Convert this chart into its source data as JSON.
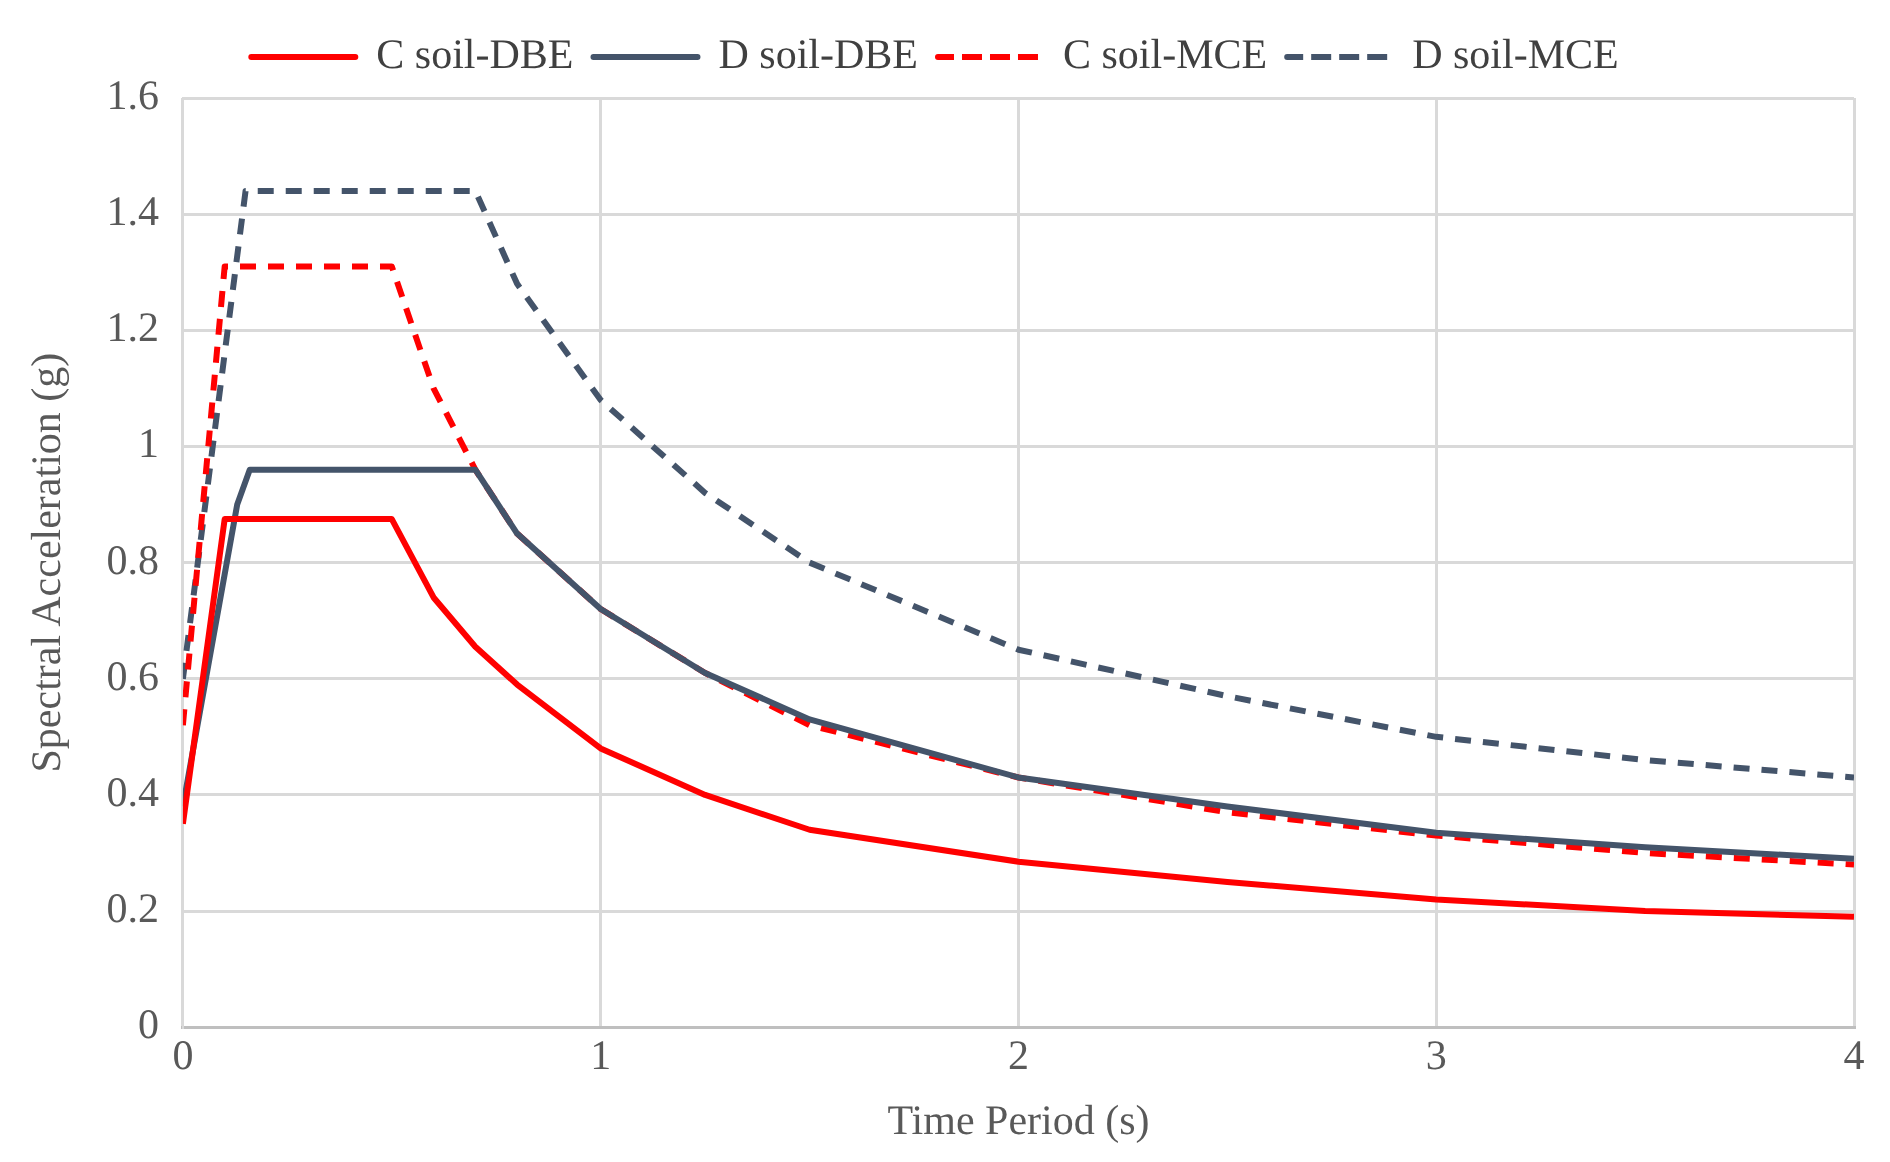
{
  "chart_data": {
    "type": "line",
    "xlabel": "Time Period (s)",
    "ylabel": "Spectral Acceleration (g)",
    "xlim": [
      0,
      4
    ],
    "xticks": [
      0,
      1,
      2,
      3,
      4
    ],
    "ylim": [
      0,
      1.6
    ],
    "yticks": [
      0,
      0.2,
      0.4,
      0.6,
      0.8,
      1,
      1.2,
      1.4,
      1.6
    ],
    "grid": true,
    "legend": "top",
    "marker": "none",
    "series": [
      {
        "name": "C soil-DBE",
        "color": "#ff0000",
        "line_style": "solid",
        "x": [
          0,
          0.1,
          0.5,
          0.6,
          0.7,
          0.8,
          1,
          1.25,
          1.5,
          2,
          2.5,
          3,
          3.5,
          4
        ],
        "values": [
          0.35,
          0.875,
          0.875,
          0.74,
          0.655,
          0.59,
          0.48,
          0.4,
          0.34,
          0.285,
          0.25,
          0.22,
          0.2,
          0.19
        ]
      },
      {
        "name": "D soil-DBE",
        "color": "#44546a",
        "line_style": "solid",
        "x": [
          0,
          0.13,
          0.16,
          0.7,
          0.8,
          1,
          1.25,
          1.5,
          2,
          2.5,
          3,
          3.5,
          4
        ],
        "values": [
          0.38,
          0.9,
          0.96,
          0.96,
          0.85,
          0.72,
          0.61,
          0.53,
          0.43,
          0.38,
          0.335,
          0.31,
          0.29
        ]
      },
      {
        "name": "C soil-MCE",
        "color": "#ff0000",
        "line_style": "dashed",
        "x": [
          0,
          0.1,
          0.5,
          0.6,
          0.7,
          0.8,
          1,
          1.25,
          1.5,
          2,
          2.5,
          3,
          3.5,
          4
        ],
        "values": [
          0.52,
          1.31,
          1.31,
          1.1,
          0.96,
          0.85,
          0.72,
          0.61,
          0.52,
          0.43,
          0.37,
          0.33,
          0.3,
          0.28
        ]
      },
      {
        "name": "D soil-MCE",
        "color": "#44546a",
        "line_style": "dashed",
        "x": [
          0,
          0.15,
          0.7,
          0.8,
          0.9,
          1,
          1.25,
          1.5,
          2,
          2.5,
          3,
          3.5,
          4
        ],
        "values": [
          0.6,
          1.44,
          1.44,
          1.28,
          1.18,
          1.08,
          0.92,
          0.8,
          0.65,
          0.57,
          0.5,
          0.46,
          0.43
        ]
      }
    ]
  }
}
